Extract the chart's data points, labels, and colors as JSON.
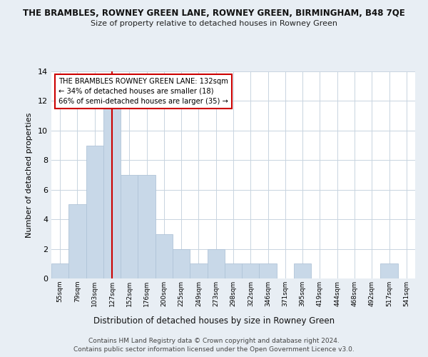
{
  "title": "THE BRAMBLES, ROWNEY GREEN LANE, ROWNEY GREEN, BIRMINGHAM, B48 7QE",
  "subtitle": "Size of property relative to detached houses in Rowney Green",
  "xlabel": "Distribution of detached houses by size in Rowney Green",
  "ylabel": "Number of detached properties",
  "bin_labels": [
    "55sqm",
    "79sqm",
    "103sqm",
    "127sqm",
    "152sqm",
    "176sqm",
    "200sqm",
    "225sqm",
    "249sqm",
    "273sqm",
    "298sqm",
    "322sqm",
    "346sqm",
    "371sqm",
    "395sqm",
    "419sqm",
    "444sqm",
    "468sqm",
    "492sqm",
    "517sqm",
    "541sqm"
  ],
  "bar_heights": [
    1,
    5,
    9,
    12,
    7,
    7,
    3,
    2,
    1,
    2,
    1,
    1,
    1,
    0,
    1,
    0,
    0,
    0,
    0,
    1,
    0
  ],
  "bar_color": "#c8d8e8",
  "bar_edge_color": "#b0c4d8",
  "highlight_line_index": 3,
  "highlight_line_color": "#cc0000",
  "ylim": [
    0,
    14
  ],
  "yticks": [
    0,
    2,
    4,
    6,
    8,
    10,
    12,
    14
  ],
  "annotation_title": "THE BRAMBLES ROWNEY GREEN LANE: 132sqm",
  "annotation_line1": "← 34% of detached houses are smaller (18)",
  "annotation_line2": "66% of semi-detached houses are larger (35) →",
  "footer_line1": "Contains HM Land Registry data © Crown copyright and database right 2024.",
  "footer_line2": "Contains public sector information licensed under the Open Government Licence v3.0.",
  "bg_color": "#e8eef4",
  "plot_bg_color": "#ffffff",
  "grid_color": "#c8d4e0"
}
